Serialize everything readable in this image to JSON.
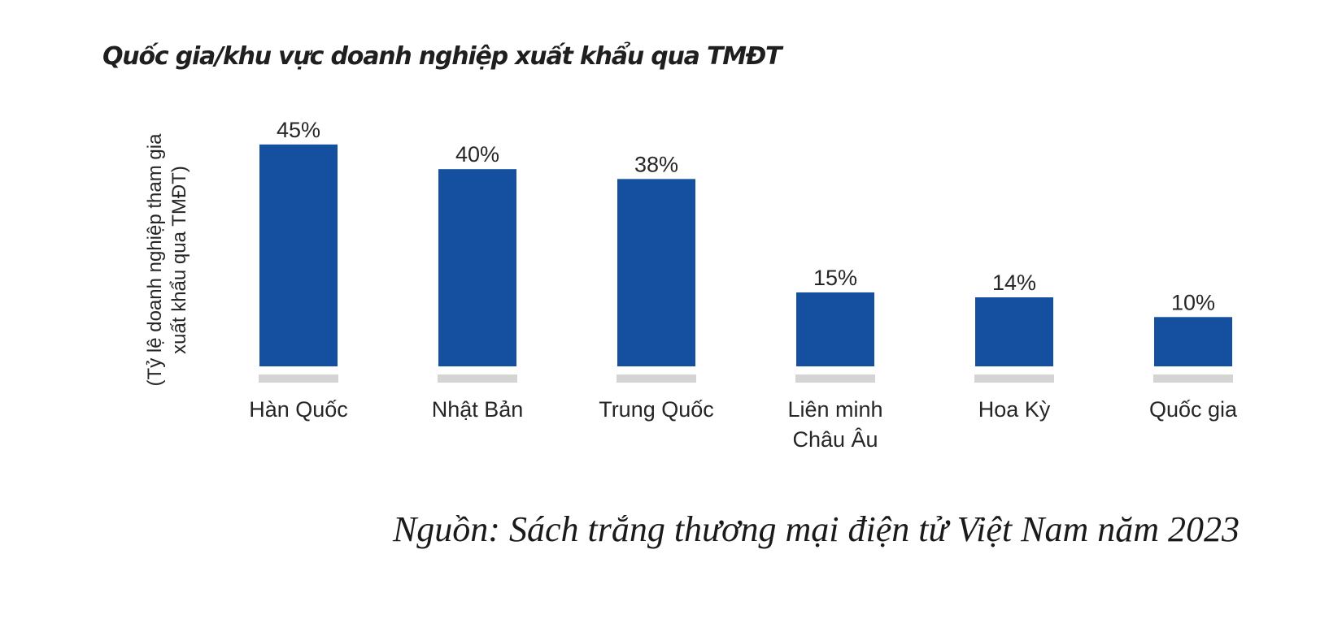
{
  "chart_data": {
    "type": "bar",
    "title": "Quốc gia/khu vực doanh nghiệp xuất khẩu qua TMĐT",
    "ylabel_lines": [
      "(Tỷ lệ doanh nghiệp tham gia",
      "xuất khẩu qua TMĐT)"
    ],
    "xlabel": "",
    "categories": [
      [
        "Hàn Quốc"
      ],
      [
        "Nhật Bản"
      ],
      [
        "Trung Quốc"
      ],
      [
        "Liên minh",
        "Châu Âu"
      ],
      [
        "Hoa Kỳ"
      ],
      [
        "Quốc gia"
      ]
    ],
    "values": [
      45,
      40,
      38,
      15,
      14,
      10
    ],
    "value_labels": [
      "45%",
      "40%",
      "38%",
      "15%",
      "14%",
      "10%"
    ],
    "ylim": [
      0,
      45
    ],
    "grid": false,
    "legend": "none",
    "colors": {
      "bar": "#1550A0",
      "baseline": "#d4d4d4"
    }
  },
  "source": "Nguồn: Sách trắng thương mại điện tử Việt Nam năm 2023"
}
